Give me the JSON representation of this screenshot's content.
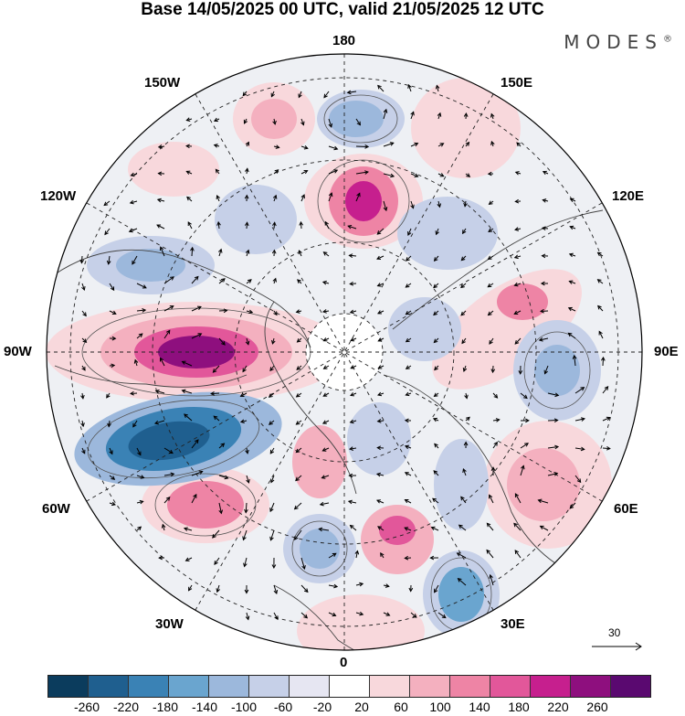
{
  "title": "Base 14/05/2025 00 UTC, valid 21/05/2025 12 UTC",
  "brand": "MODES",
  "brand_mark": "®",
  "longitude_labels": {
    "lon_180": "180",
    "lon_150w": "150W",
    "lon_150e": "150E",
    "lon_120w": "120W",
    "lon_120e": "120E",
    "lon_90w": "90W",
    "lon_90e": "90E",
    "lon_60w": "60W",
    "lon_60e": "60E",
    "lon_30w": "30W",
    "lon_30e": "30E",
    "lon_0": "0"
  },
  "reference_vector": {
    "value": "30"
  },
  "colorbar": {
    "colors": [
      "#0b3c5d",
      "#1f5f8f",
      "#3a82b5",
      "#6aa5cf",
      "#9cb8dc",
      "#c6d0e8",
      "#e6e6f2",
      "#ffffff",
      "#f8d8dc",
      "#f4b0bf",
      "#ee84a5",
      "#e2579a",
      "#c61f8e",
      "#8e0f7e",
      "#5a0970"
    ],
    "ticks": [
      "-260",
      "-220",
      "-180",
      "-140",
      "-100",
      "-60",
      "-20",
      "20",
      "60",
      "100",
      "140",
      "180",
      "220",
      "260"
    ]
  }
}
